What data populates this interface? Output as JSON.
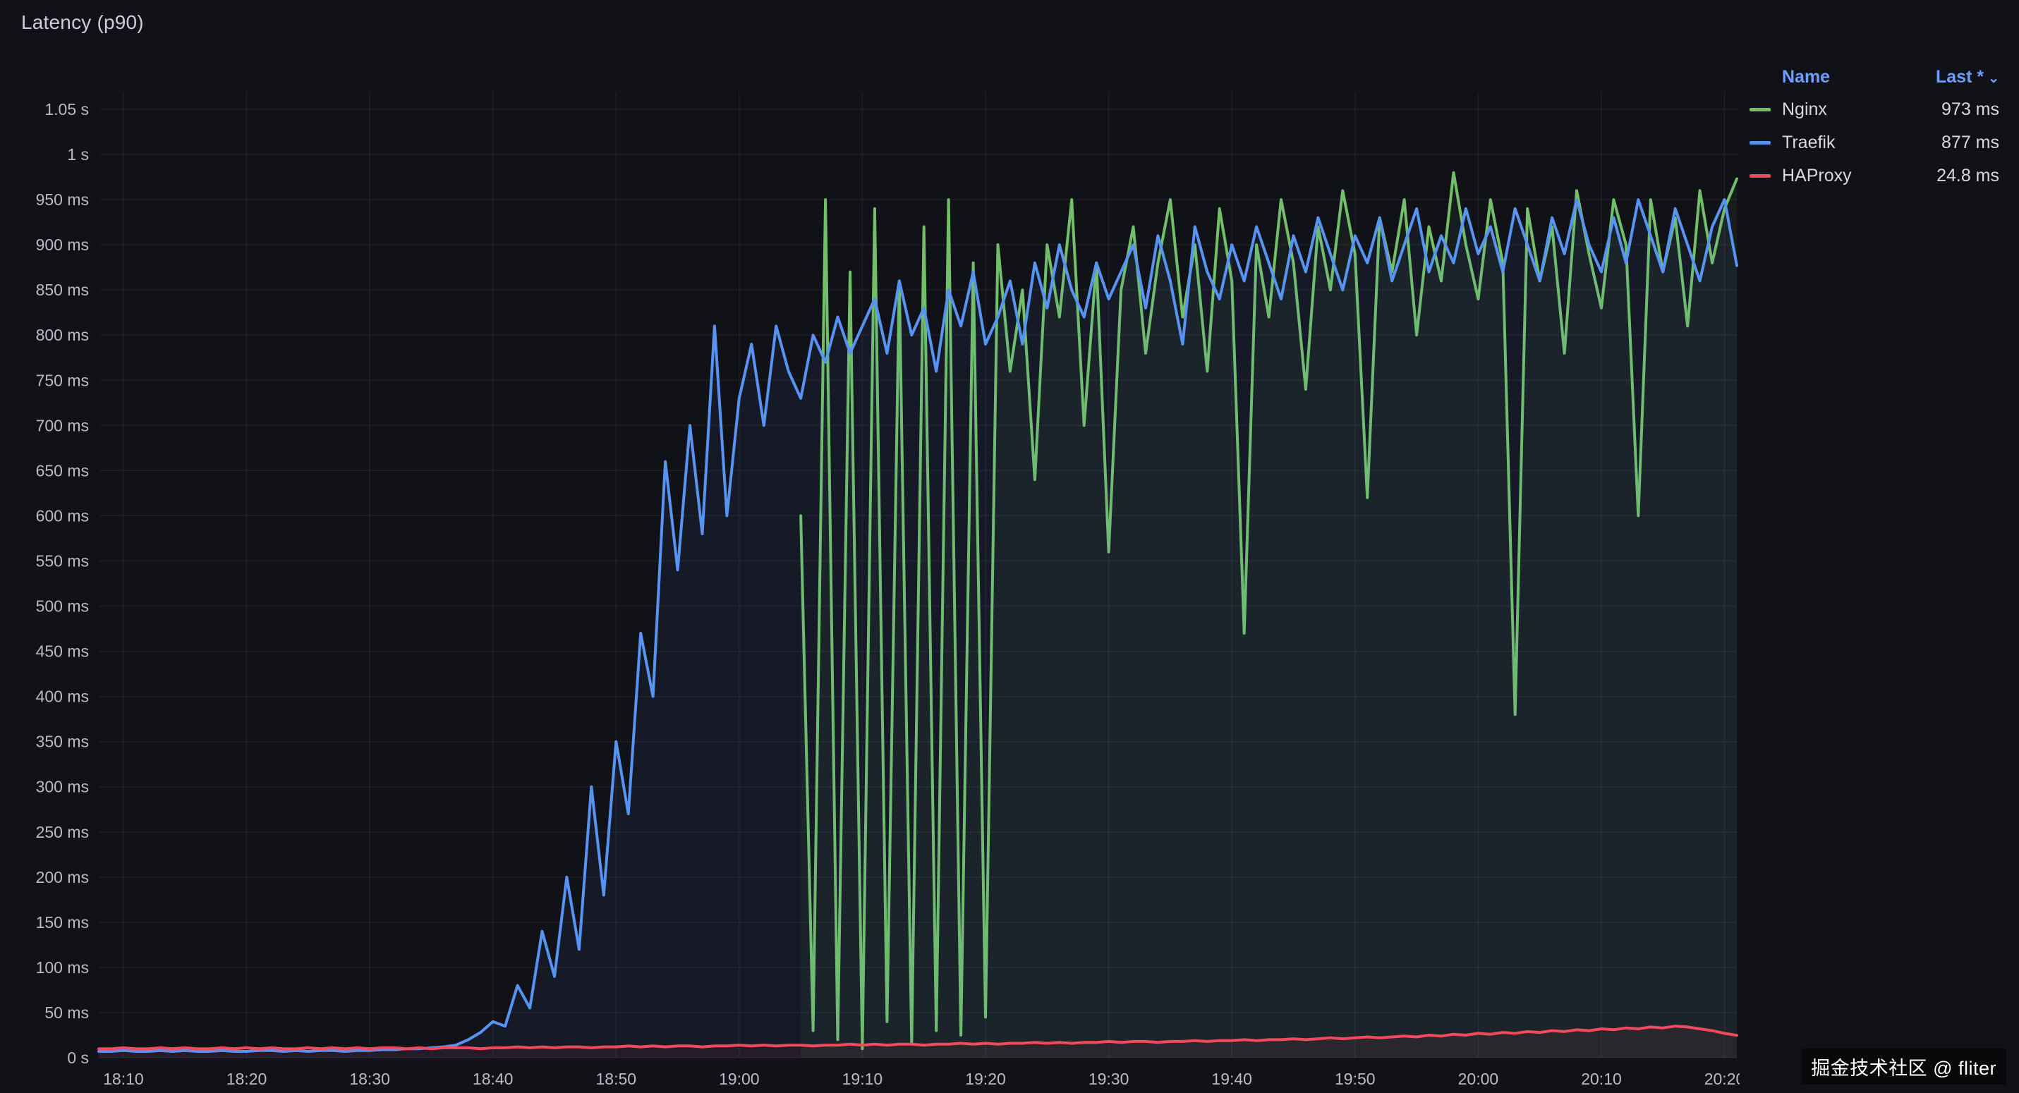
{
  "panel": {
    "title": "Latency (p90)"
  },
  "legend": {
    "name_header": "Name",
    "last_header": "Last *",
    "sort_icon": "⌄"
  },
  "watermark": "掘金技术社区 @ fliter",
  "colors": {
    "background": "#111217",
    "grid": "rgba(204,204,220,0.07)",
    "axis_text": "#b9bcc5",
    "title_text": "#ccccdc",
    "legend_header": "#6e9fff",
    "value_text": "#d8d9da"
  },
  "chart_data": {
    "type": "line",
    "title": "Latency (p90)",
    "xlabel": "",
    "ylabel": "",
    "ylim": [
      0,
      1050
    ],
    "legend_position": "right-top",
    "grid": true,
    "x_axis": {
      "start_minute": 8,
      "step_minute": 1,
      "tick_minutes": [
        10,
        20,
        30,
        40,
        50,
        60,
        70,
        80,
        90,
        100,
        110,
        120,
        130,
        140
      ],
      "tick_labels": [
        "18:10",
        "18:20",
        "18:30",
        "18:40",
        "18:50",
        "19:00",
        "19:10",
        "19:20",
        "19:30",
        "19:40",
        "19:50",
        "20:00",
        "20:10",
        "20:20"
      ]
    },
    "y_axis": {
      "min": 0,
      "max": 1050,
      "tick_values": [
        0,
        50,
        100,
        150,
        200,
        250,
        300,
        350,
        400,
        450,
        500,
        550,
        600,
        650,
        700,
        750,
        800,
        850,
        900,
        950,
        1000,
        1050
      ],
      "tick_labels": [
        "0 s",
        "50 ms",
        "100 ms",
        "150 ms",
        "200 ms",
        "250 ms",
        "300 ms",
        "350 ms",
        "400 ms",
        "450 ms",
        "500 ms",
        "550 ms",
        "600 ms",
        "650 ms",
        "700 ms",
        "750 ms",
        "800 ms",
        "850 ms",
        "900 ms",
        "950 ms",
        "1 s",
        "1.05 s"
      ]
    },
    "series": [
      {
        "name": "Nginx",
        "color": "#73bf69",
        "last": "973 ms",
        "values": [
          null,
          null,
          null,
          null,
          null,
          null,
          null,
          null,
          null,
          null,
          null,
          null,
          null,
          null,
          null,
          null,
          null,
          null,
          null,
          null,
          null,
          null,
          null,
          null,
          null,
          null,
          null,
          null,
          null,
          null,
          null,
          null,
          null,
          null,
          null,
          null,
          null,
          null,
          null,
          null,
          null,
          null,
          null,
          null,
          null,
          null,
          null,
          null,
          null,
          null,
          null,
          null,
          null,
          null,
          null,
          null,
          null,
          600,
          30,
          950,
          20,
          870,
          10,
          940,
          40,
          860,
          15,
          920,
          30,
          950,
          25,
          880,
          45,
          900,
          760,
          850,
          640,
          900,
          820,
          950,
          700,
          880,
          560,
          850,
          920,
          780,
          880,
          950,
          820,
          900,
          760,
          940,
          860,
          470,
          900,
          820,
          950,
          880,
          740,
          920,
          850,
          960,
          890,
          620,
          930,
          870,
          950,
          800,
          920,
          860,
          980,
          900,
          840,
          950,
          880,
          380,
          940,
          860,
          920,
          780,
          960,
          890,
          830,
          950,
          900,
          600,
          950,
          870,
          930,
          810,
          960,
          880,
          940,
          973
        ]
      },
      {
        "name": "Traefik",
        "color": "#5794f2",
        "last": "877 ms",
        "values": [
          7,
          7,
          8,
          7,
          7,
          8,
          7,
          8,
          7,
          7,
          8,
          7,
          7,
          8,
          8,
          7,
          8,
          7,
          8,
          8,
          7,
          8,
          8,
          9,
          9,
          10,
          10,
          11,
          12,
          14,
          20,
          28,
          40,
          35,
          80,
          55,
          140,
          90,
          200,
          120,
          300,
          180,
          350,
          270,
          470,
          400,
          660,
          540,
          700,
          580,
          810,
          600,
          730,
          790,
          700,
          810,
          760,
          730,
          800,
          770,
          820,
          780,
          810,
          840,
          780,
          860,
          800,
          830,
          760,
          850,
          810,
          870,
          790,
          820,
          860,
          790,
          880,
          830,
          900,
          850,
          820,
          880,
          840,
          870,
          900,
          830,
          910,
          860,
          790,
          920,
          870,
          840,
          900,
          860,
          920,
          880,
          840,
          910,
          870,
          930,
          890,
          850,
          910,
          880,
          930,
          860,
          900,
          940,
          870,
          910,
          880,
          940,
          890,
          920,
          870,
          940,
          900,
          860,
          930,
          890,
          950,
          900,
          870,
          930,
          880,
          950,
          910,
          870,
          940,
          900,
          860,
          920,
          950,
          877
        ]
      },
      {
        "name": "HAProxy",
        "color": "#f2495c",
        "last": "24.8 ms",
        "values": [
          10,
          10,
          11,
          10,
          10,
          11,
          10,
          11,
          10,
          10,
          11,
          10,
          11,
          10,
          11,
          10,
          10,
          11,
          10,
          11,
          10,
          11,
          10,
          11,
          11,
          10,
          11,
          10,
          11,
          11,
          11,
          10,
          11,
          11,
          12,
          11,
          12,
          11,
          12,
          12,
          11,
          12,
          12,
          13,
          12,
          13,
          12,
          13,
          13,
          12,
          13,
          13,
          14,
          13,
          14,
          13,
          14,
          14,
          13,
          14,
          14,
          15,
          14,
          15,
          14,
          15,
          15,
          14,
          15,
          15,
          16,
          15,
          16,
          15,
          16,
          16,
          17,
          16,
          17,
          16,
          17,
          17,
          18,
          17,
          18,
          18,
          17,
          18,
          18,
          19,
          18,
          19,
          19,
          20,
          19,
          20,
          20,
          21,
          20,
          21,
          22,
          21,
          22,
          23,
          22,
          23,
          24,
          23,
          25,
          24,
          26,
          25,
          27,
          26,
          28,
          27,
          29,
          28,
          30,
          29,
          31,
          30,
          32,
          31,
          33,
          32,
          34,
          33,
          35,
          34,
          32,
          30,
          27,
          24.8
        ]
      }
    ]
  }
}
